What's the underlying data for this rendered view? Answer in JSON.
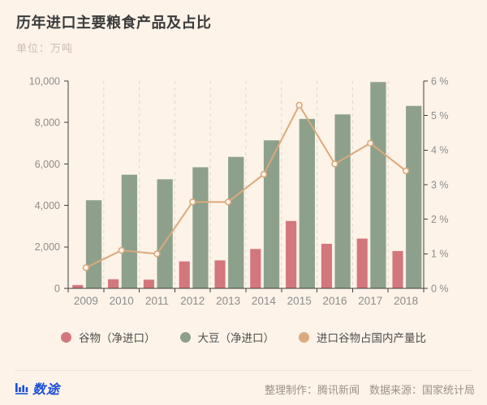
{
  "header": {
    "title": "历年进口主要粮食产品及占比",
    "subtitle": "单位：万吨"
  },
  "colors": {
    "background": "#fdf3e8",
    "cereal_bar": "#d3777c",
    "soybean_bar": "#8da08b",
    "ratio_line": "#dba97d",
    "axis": "#3f3f3f",
    "gridline": "#e0ddd6",
    "tick_text": "#8c8c8c",
    "logo_blue": "#1b50d8",
    "marker_fill": "#fef6ed"
  },
  "chart_data": {
    "type": "bar",
    "subtype": "grouped-bar-with-line",
    "categories": [
      "2009",
      "2010",
      "2011",
      "2012",
      "2013",
      "2014",
      "2015",
      "2016",
      "2017",
      "2018"
    ],
    "series": [
      {
        "name": "谷物（净进口）",
        "type": "bar",
        "axis": "left",
        "color": "#d3777c",
        "values": [
          160,
          440,
          420,
          1300,
          1350,
          1900,
          3250,
          2150,
          2400,
          1800
        ]
      },
      {
        "name": "大豆（净进口）",
        "type": "bar",
        "axis": "left",
        "color": "#8da08b",
        "values": [
          4250,
          5480,
          5260,
          5840,
          6340,
          7140,
          8170,
          8390,
          9950,
          8800
        ]
      },
      {
        "name": "进口谷物占国内产量比",
        "type": "line",
        "axis": "right",
        "color": "#dba97d",
        "values": [
          0.6,
          1.1,
          1.0,
          2.5,
          2.5,
          3.3,
          5.3,
          3.6,
          4.2,
          3.4
        ]
      }
    ],
    "left_axis": {
      "min": 0,
      "max": 10000,
      "step": 2000,
      "tick_labels": [
        "0",
        "2,000",
        "4,000",
        "6,000",
        "8,000",
        "10,000"
      ]
    },
    "right_axis": {
      "min": 0,
      "max": 6,
      "step": 1,
      "tick_labels": [
        "0 %",
        "1 %",
        "2 %",
        "3 %",
        "4 %",
        "5 %",
        "6 %"
      ]
    },
    "grid": "vertical-dashed",
    "legend_position": "bottom",
    "title": "历年进口主要粮食产品及占比",
    "unit_label": "单位：万吨"
  },
  "legend": {
    "items": [
      {
        "label": "谷物（净进口）",
        "color": "#d3777c"
      },
      {
        "label": "大豆（净进口）",
        "color": "#8da08b"
      },
      {
        "label": "进口谷物占国内产量比",
        "color": "#dba97d"
      }
    ]
  },
  "footer": {
    "logo_text": "数途",
    "credit": "整理制作：腾讯新闻",
    "source": "数据来源：国家统计局"
  }
}
